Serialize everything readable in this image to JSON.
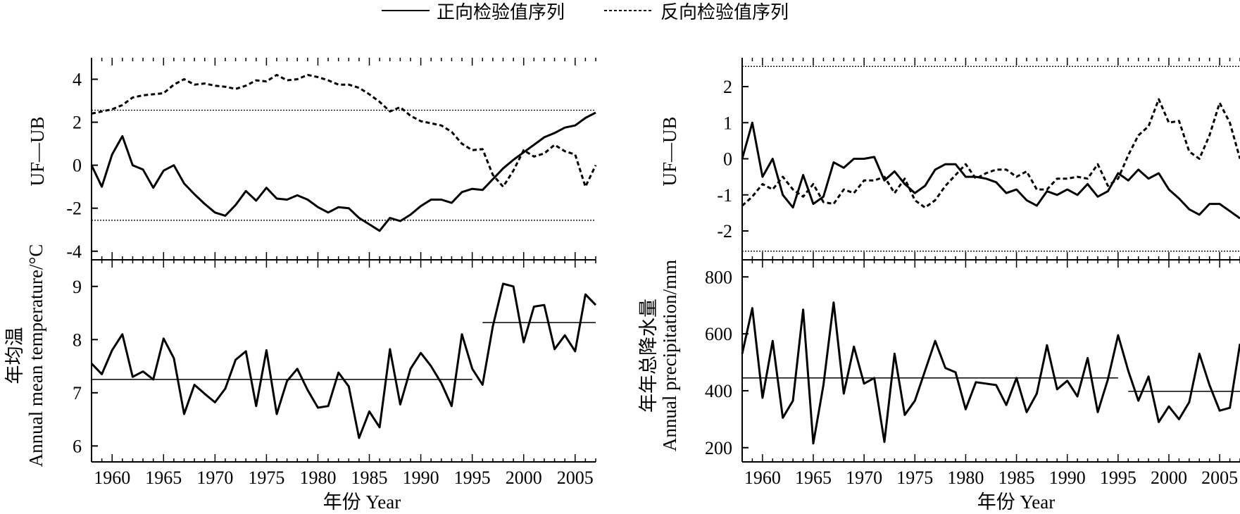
{
  "legend": {
    "items": [
      {
        "label": "正向检验值序列",
        "style": "solid"
      },
      {
        "label": "反向检验值序列",
        "style": "dashed"
      }
    ],
    "placement": "top-center"
  },
  "chart_data": [
    {
      "type": "line",
      "panel": "left-top",
      "ylabel": "UF—UB",
      "ylim": [
        -4.4,
        5.0
      ],
      "yticks": [
        -4,
        -2,
        0,
        2,
        4
      ],
      "xlim": [
        1958,
        2007
      ],
      "threshold": [
        2.56,
        -2.56
      ],
      "x": [
        1958,
        1959,
        1960,
        1961,
        1962,
        1963,
        1964,
        1965,
        1966,
        1967,
        1968,
        1969,
        1970,
        1971,
        1972,
        1973,
        1974,
        1975,
        1976,
        1977,
        1978,
        1979,
        1980,
        1981,
        1982,
        1983,
        1984,
        1985,
        1986,
        1987,
        1988,
        1989,
        1990,
        1991,
        1992,
        1993,
        1994,
        1995,
        1996,
        1997,
        1998,
        1999,
        2000,
        2001,
        2002,
        2003,
        2004,
        2005,
        2006,
        2007
      ],
      "series": [
        {
          "style": "solid",
          "values": [
            0.0,
            -1.0,
            0.5,
            1.35,
            0.0,
            -0.2,
            -1.05,
            -0.25,
            0.0,
            -0.85,
            -1.35,
            -1.8,
            -2.2,
            -2.35,
            -1.85,
            -1.2,
            -1.65,
            -1.05,
            -1.55,
            -1.6,
            -1.4,
            -1.6,
            -1.95,
            -2.2,
            -1.95,
            -2.0,
            -2.45,
            -2.75,
            -3.05,
            -2.45,
            -2.6,
            -2.3,
            -1.9,
            -1.6,
            -1.6,
            -1.75,
            -1.25,
            -1.1,
            -1.15,
            -0.65,
            -0.15,
            0.25,
            0.6,
            0.95,
            1.3,
            1.5,
            1.75,
            1.85,
            2.2,
            2.45
          ]
        },
        {
          "style": "dashed",
          "values": [
            2.4,
            2.5,
            2.6,
            2.8,
            3.15,
            3.25,
            3.3,
            3.35,
            3.75,
            4.0,
            3.75,
            3.8,
            3.7,
            3.65,
            3.55,
            3.7,
            3.95,
            3.9,
            4.2,
            3.95,
            4.0,
            4.2,
            4.1,
            3.95,
            3.75,
            3.75,
            3.6,
            3.3,
            2.95,
            2.5,
            2.7,
            2.3,
            2.05,
            1.95,
            1.85,
            1.55,
            1.0,
            0.7,
            0.75,
            -0.45,
            -1.0,
            -0.25,
            0.7,
            0.4,
            0.55,
            0.95,
            0.65,
            0.5,
            -1.0,
            0.0
          ]
        }
      ]
    },
    {
      "type": "line",
      "panel": "left-bottom",
      "ylabel": "年均温",
      "ylabel2": "Annual mean temperature/°C",
      "xlabel": "年份 Year",
      "ylim": [
        5.7,
        9.5
      ],
      "yticks": [
        6,
        7,
        8,
        9
      ],
      "xlim": [
        1958,
        2007
      ],
      "xticks": [
        1960,
        1965,
        1970,
        1975,
        1980,
        1985,
        1990,
        1995,
        2000,
        2005
      ],
      "x": [
        1958,
        1959,
        1960,
        1961,
        1962,
        1963,
        1964,
        1965,
        1966,
        1967,
        1968,
        1969,
        1970,
        1971,
        1972,
        1973,
        1974,
        1975,
        1976,
        1977,
        1978,
        1979,
        1980,
        1981,
        1982,
        1983,
        1984,
        1985,
        1986,
        1987,
        1988,
        1989,
        1990,
        1991,
        1992,
        1993,
        1994,
        1995,
        1996,
        1997,
        1998,
        1999,
        2000,
        2001,
        2002,
        2003,
        2004,
        2005,
        2006,
        2007
      ],
      "series": [
        {
          "style": "solid",
          "values": [
            7.55,
            7.35,
            7.8,
            8.1,
            7.3,
            7.4,
            7.25,
            8.02,
            7.65,
            6.6,
            7.15,
            6.98,
            6.82,
            7.08,
            7.62,
            7.78,
            6.75,
            7.8,
            6.6,
            7.22,
            7.45,
            7.05,
            6.72,
            6.75,
            7.38,
            7.12,
            6.15,
            6.65,
            6.35,
            7.82,
            6.78,
            7.45,
            7.75,
            7.5,
            7.18,
            6.75,
            8.1,
            7.45,
            7.15,
            8.25,
            9.05,
            9.0,
            7.95,
            8.62,
            8.65,
            7.82,
            8.08,
            7.78,
            8.85,
            8.65
          ]
        }
      ],
      "mean_lines": [
        {
          "x": [
            1958,
            1995
          ],
          "y": 7.25
        },
        {
          "x": [
            1996,
            2007
          ],
          "y": 8.32
        }
      ]
    },
    {
      "type": "line",
      "panel": "right-top",
      "ylabel": "UF—UB",
      "ylim": [
        -2.8,
        2.8
      ],
      "yticks": [
        -2,
        -1,
        0,
        1,
        2
      ],
      "xlim": [
        1958,
        2007
      ],
      "threshold": [
        2.56,
        -2.56
      ],
      "x": [
        1958,
        1959,
        1960,
        1961,
        1962,
        1963,
        1964,
        1965,
        1966,
        1967,
        1968,
        1969,
        1970,
        1971,
        1972,
        1973,
        1974,
        1975,
        1976,
        1977,
        1978,
        1979,
        1980,
        1981,
        1982,
        1983,
        1984,
        1985,
        1986,
        1987,
        1988,
        1989,
        1990,
        1991,
        1992,
        1993,
        1994,
        1995,
        1996,
        1997,
        1998,
        1999,
        2000,
        2001,
        2002,
        2003,
        2004,
        2005,
        2006,
        2007
      ],
      "series": [
        {
          "style": "solid",
          "values": [
            0.0,
            1.0,
            -0.5,
            0.0,
            -1.0,
            -1.35,
            -0.45,
            -1.25,
            -1.05,
            -0.1,
            -0.25,
            0.0,
            0.0,
            0.05,
            -0.6,
            -0.35,
            -0.7,
            -0.95,
            -0.75,
            -0.3,
            -0.15,
            -0.15,
            -0.5,
            -0.5,
            -0.55,
            -0.65,
            -0.95,
            -0.85,
            -1.15,
            -1.3,
            -0.9,
            -1.0,
            -0.85,
            -1.0,
            -0.7,
            -1.05,
            -0.9,
            -0.4,
            -0.6,
            -0.3,
            -0.55,
            -0.4,
            -0.85,
            -1.1,
            -1.4,
            -1.55,
            -1.25,
            -1.25,
            -1.45,
            -1.65
          ]
        },
        {
          "style": "dashed",
          "values": [
            -1.3,
            -1.05,
            -0.7,
            -0.85,
            -0.5,
            -0.85,
            -1.05,
            -0.7,
            -1.2,
            -1.25,
            -0.85,
            -0.95,
            -0.6,
            -0.6,
            -0.5,
            -0.95,
            -0.55,
            -1.15,
            -1.35,
            -1.15,
            -0.75,
            -0.45,
            -0.15,
            -0.55,
            -0.4,
            -0.3,
            -0.3,
            -0.5,
            -0.35,
            -0.85,
            -0.85,
            -0.55,
            -0.55,
            -0.5,
            -0.55,
            -0.15,
            -0.75,
            -0.55,
            0.1,
            0.65,
            0.9,
            1.65,
            1.0,
            1.05,
            0.2,
            0.0,
            0.65,
            1.55,
            1.0,
            0.0
          ]
        }
      ]
    },
    {
      "type": "line",
      "panel": "right-bottom",
      "ylabel": "年年总降水量",
      "ylabel2": "Annual precipitation/mm",
      "xlabel": "年份 Year",
      "ylim": [
        150,
        860
      ],
      "yticks": [
        200,
        400,
        600,
        800
      ],
      "xlim": [
        1958,
        2007
      ],
      "xticks": [
        1960,
        1965,
        1970,
        1975,
        1980,
        1985,
        1990,
        1995,
        2000,
        2005
      ],
      "x": [
        1958,
        1959,
        1960,
        1961,
        1962,
        1963,
        1964,
        1965,
        1966,
        1967,
        1968,
        1969,
        1970,
        1971,
        1972,
        1973,
        1974,
        1975,
        1976,
        1977,
        1978,
        1979,
        1980,
        1981,
        1982,
        1983,
        1984,
        1985,
        1986,
        1987,
        1988,
        1989,
        1990,
        1991,
        1992,
        1993,
        1994,
        1995,
        1996,
        1997,
        1998,
        1999,
        2000,
        2001,
        2002,
        2003,
        2004,
        2005,
        2006,
        2007
      ],
      "series": [
        {
          "style": "solid",
          "values": [
            530,
            690,
            375,
            575,
            305,
            365,
            685,
            215,
            420,
            710,
            390,
            555,
            425,
            445,
            220,
            530,
            315,
            365,
            470,
            575,
            480,
            465,
            335,
            430,
            425,
            420,
            350,
            445,
            325,
            390,
            560,
            405,
            435,
            380,
            515,
            325,
            440,
            595,
            470,
            365,
            450,
            290,
            345,
            300,
            360,
            530,
            420,
            330,
            340,
            565
          ]
        }
      ],
      "mean_lines": [
        {
          "x": [
            1958,
            1995
          ],
          "y": 445
        },
        {
          "x": [
            1996,
            2007
          ],
          "y": 398
        }
      ]
    }
  ]
}
